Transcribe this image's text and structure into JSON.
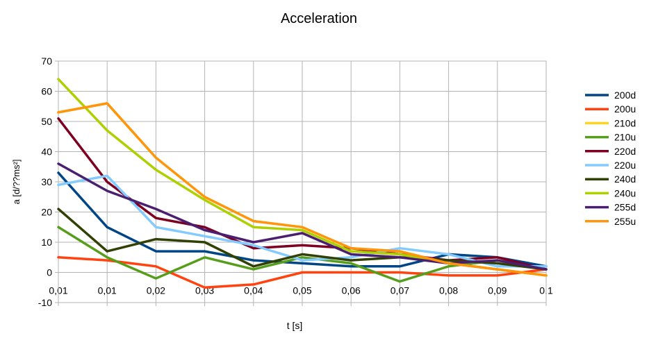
{
  "chart_data": {
    "type": "line",
    "title": "Acceleration",
    "xlabel": "t [s]",
    "ylabel": "a [d/??ms²]",
    "categories": [
      "0,01",
      "0,01",
      "0,02",
      "0,03",
      "0,04",
      "0,05",
      "0,06",
      "0,07",
      "0,08",
      "0,09",
      "0,1"
    ],
    "ylim": [
      -10,
      70
    ],
    "yticks": [
      -10,
      0,
      10,
      20,
      30,
      40,
      50,
      60,
      70
    ],
    "grid": true,
    "legend_position": "right",
    "series": [
      {
        "name": "200d",
        "color": "#004586",
        "values": [
          33,
          15,
          7,
          7,
          4,
          3,
          2,
          2,
          6,
          5,
          2
        ]
      },
      {
        "name": "200u",
        "color": "#ff420e",
        "values": [
          5,
          4,
          2,
          -5,
          -4,
          0,
          0,
          0,
          -1,
          -1,
          1
        ]
      },
      {
        "name": "210d",
        "color": "#ffd320",
        "values": [
          53,
          56,
          38,
          25,
          17,
          15,
          8,
          7,
          3,
          1,
          -1
        ]
      },
      {
        "name": "210u",
        "color": "#579d1c",
        "values": [
          15,
          5,
          -2,
          5,
          1,
          5,
          3,
          -3,
          2,
          4,
          1
        ]
      },
      {
        "name": "220d",
        "color": "#7e0021",
        "values": [
          51,
          30,
          18,
          15,
          8,
          9,
          8,
          6,
          4,
          5,
          1
        ]
      },
      {
        "name": "220u",
        "color": "#83caff",
        "values": [
          29,
          32,
          15,
          12,
          9,
          4,
          5,
          8,
          6,
          2,
          2
        ]
      },
      {
        "name": "240d",
        "color": "#314004",
        "values": [
          21,
          7,
          11,
          10,
          2,
          6,
          4,
          5,
          4,
          3,
          1
        ]
      },
      {
        "name": "240u",
        "color": "#aecf00",
        "values": [
          64,
          47,
          34,
          24,
          15,
          14,
          7,
          6,
          3,
          1,
          -1
        ]
      },
      {
        "name": "255d",
        "color": "#4b1f6f",
        "values": [
          36,
          27,
          21,
          14,
          10,
          13,
          6,
          5,
          3,
          4,
          1
        ]
      },
      {
        "name": "255u",
        "color": "#ff950e",
        "values": [
          53,
          56,
          38,
          25,
          17,
          15,
          8,
          7,
          3,
          1,
          -1
        ]
      }
    ]
  }
}
